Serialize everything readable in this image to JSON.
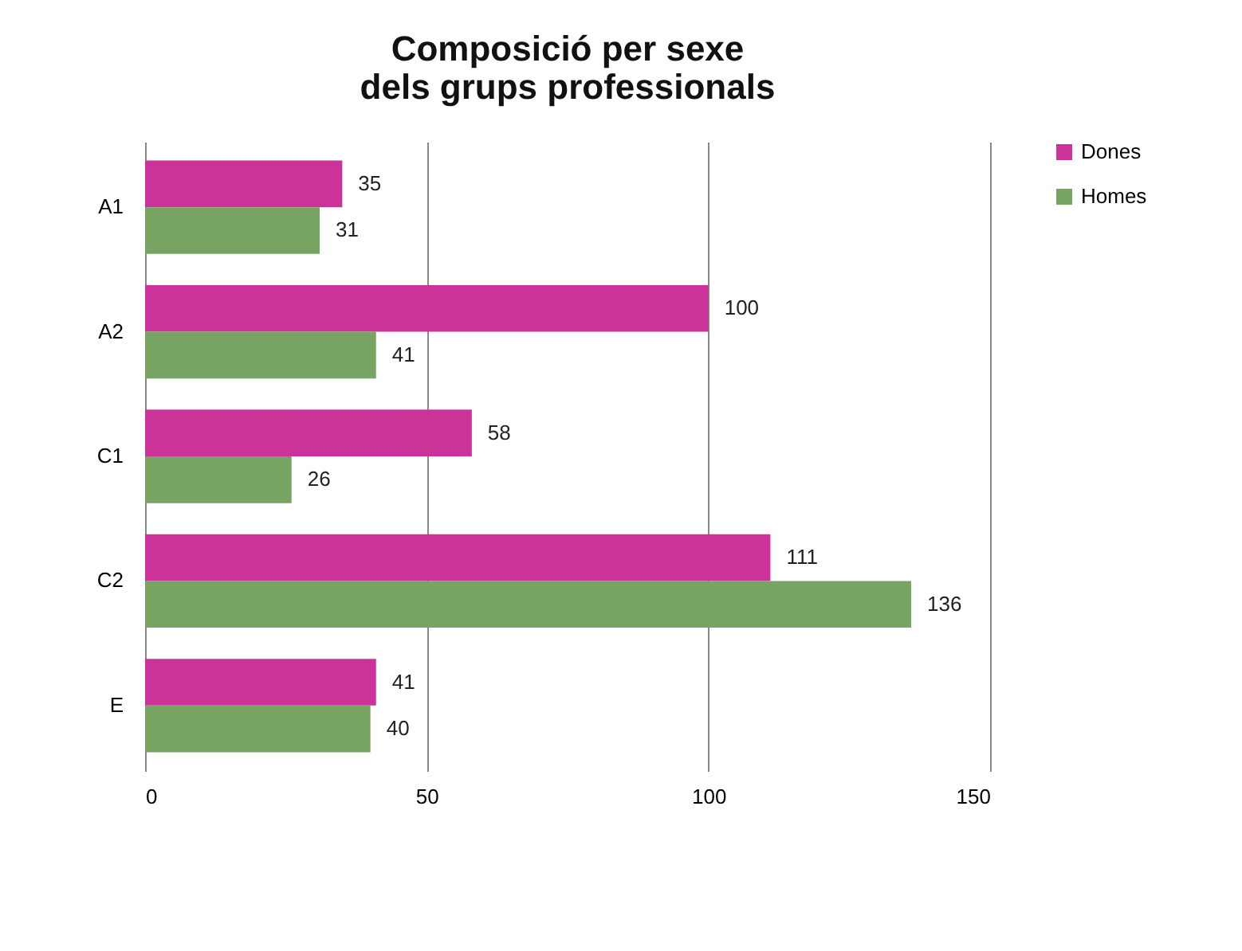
{
  "chart_data": {
    "type": "bar",
    "orientation": "horizontal",
    "title": "Composició per sexe\ndels grups professionals",
    "categories": [
      "A1",
      "A2",
      "C1",
      "C2",
      "E"
    ],
    "series": [
      {
        "name": "Dones",
        "color": "#cc3399",
        "values": [
          35,
          100,
          58,
          111,
          41
        ]
      },
      {
        "name": "Homes",
        "color": "#77a363",
        "values": [
          31,
          41,
          26,
          136,
          40
        ]
      }
    ],
    "xlim": [
      0,
      150
    ],
    "xticks": [
      0,
      50,
      100,
      150
    ],
    "grid": "x",
    "legend": "right",
    "data_labels": true
  }
}
